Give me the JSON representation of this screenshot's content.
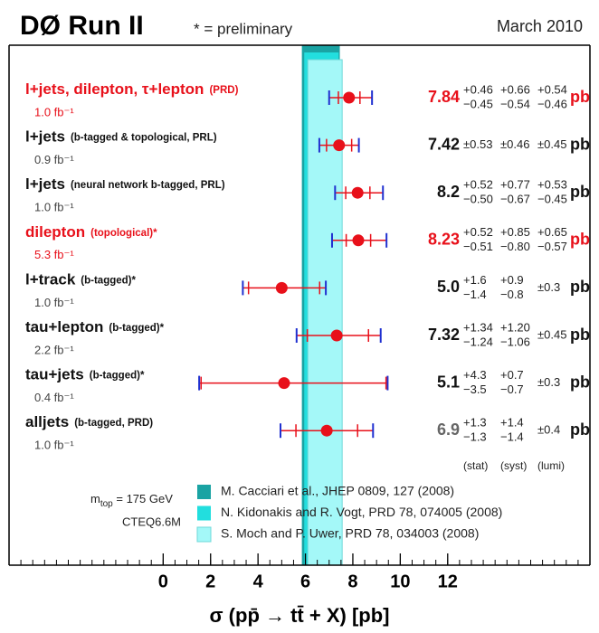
{
  "chart_data": {
    "type": "summary",
    "title": "DØ Run II",
    "subtitle": "* = preliminary",
    "date": "March 2010",
    "unit": "pb",
    "xlabel": "σ (pp̄ → tt̄ + X) [pb]",
    "xlim": [
      -6.5,
      18
    ],
    "xticks": [
      0,
      2,
      4,
      6,
      8,
      10,
      12
    ],
    "xticks_minor": [
      -6,
      -5.5,
      -5,
      -4.5,
      -4,
      -3.5,
      -3,
      -2.5,
      -2,
      -1.5,
      -1,
      -0.5,
      0,
      0.5,
      1,
      1.5,
      2,
      2.5,
      3,
      3.5,
      4,
      4.5,
      5,
      5.5,
      6,
      6.5,
      7,
      7.5,
      8,
      8.5,
      9,
      9.5,
      10,
      10.5,
      11,
      11.5,
      12,
      12.5,
      13,
      13.5,
      14,
      14.5,
      15,
      15.5,
      16,
      16.5,
      17,
      17.5
    ],
    "column_labels": [
      "(stat)",
      "(syst)",
      "(lumi)"
    ],
    "marker_color": "#e8101a",
    "total_color": "#2030d0",
    "measurements": [
      {
        "name": "l+jets, dilepton, τ+lepton",
        "note": "(PRD)",
        "lumi": "1.0 fb⁻¹",
        "color": "#e8101a",
        "value_color": "#e8101a",
        "value": 7.84,
        "stat": [
          {
            "value": 0.46,
            "label": "+0.46"
          },
          {
            "value": 0.45,
            "label": "−0.45"
          }
        ],
        "syst": [
          {
            "value": 0.66,
            "label": "+0.66"
          },
          {
            "value": 0.54,
            "label": "−0.54"
          }
        ],
        "lumi_err": [
          {
            "value": 0.54,
            "label": "+0.54"
          },
          {
            "value": 0.46,
            "label": "−0.46"
          }
        ]
      },
      {
        "name": "l+jets",
        "note": "(b-tagged & topological, PRL)",
        "lumi": "0.9 fb⁻¹",
        "color": "#111111",
        "value_color": "#111111",
        "value": 7.42,
        "stat": [
          {
            "value": 0.53,
            "label": "±0.53"
          }
        ],
        "syst": [
          {
            "value": 0.46,
            "label": "±0.46"
          }
        ],
        "lumi_err": [
          {
            "value": 0.45,
            "label": "±0.45"
          }
        ]
      },
      {
        "name": "l+jets",
        "note": "(neural network b-tagged, PRL)",
        "lumi": "1.0 fb⁻¹",
        "color": "#111111",
        "value_color": "#111111",
        "value": 8.2,
        "stat": [
          {
            "value": 0.52,
            "label": "+0.52"
          },
          {
            "value": 0.5,
            "label": "−0.50"
          }
        ],
        "syst": [
          {
            "value": 0.77,
            "label": "+0.77"
          },
          {
            "value": 0.67,
            "label": "−0.67"
          }
        ],
        "lumi_err": [
          {
            "value": 0.53,
            "label": "+0.53"
          },
          {
            "value": 0.45,
            "label": "−0.45"
          }
        ]
      },
      {
        "name": "dilepton",
        "note": "(topological)*",
        "lumi": "5.3 fb⁻¹",
        "color": "#e8101a",
        "value_color": "#e8101a",
        "value": 8.23,
        "stat": [
          {
            "value": 0.52,
            "label": "+0.52"
          },
          {
            "value": 0.51,
            "label": "−0.51"
          }
        ],
        "syst": [
          {
            "value": 0.85,
            "label": "+0.85"
          },
          {
            "value": 0.8,
            "label": "−0.80"
          }
        ],
        "lumi_err": [
          {
            "value": 0.65,
            "label": "+0.65"
          },
          {
            "value": 0.57,
            "label": "−0.57"
          }
        ]
      },
      {
        "name": "l+track",
        "note": "(b-tagged)*",
        "lumi": "1.0 fb⁻¹",
        "color": "#111111",
        "value_color": "#111111",
        "value": 5.0,
        "value_label": "5.0",
        "stat": [
          {
            "value": 1.6,
            "label": "+1.6"
          },
          {
            "value": 1.4,
            "label": "−1.4"
          }
        ],
        "syst": [
          {
            "value": 0.9,
            "label": "+0.9"
          },
          {
            "value": 0.8,
            "label": "−0.8"
          }
        ],
        "lumi_err": [
          {
            "value": 0.3,
            "label": "±0.3"
          }
        ]
      },
      {
        "name": "tau+lepton",
        "note": "(b-tagged)*",
        "lumi": "2.2 fb⁻¹",
        "color": "#111111",
        "value_color": "#111111",
        "value": 7.32,
        "stat": [
          {
            "value": 1.34,
            "label": "+1.34"
          },
          {
            "value": 1.24,
            "label": "−1.24"
          }
        ],
        "syst": [
          {
            "value": 1.2,
            "label": "+1.20"
          },
          {
            "value": 1.06,
            "label": "−1.06"
          }
        ],
        "lumi_err": [
          {
            "value": 0.45,
            "label": "±0.45"
          }
        ]
      },
      {
        "name": "tau+jets",
        "note": "(b-tagged)*",
        "lumi": "0.4 fb⁻¹",
        "color": "#111111",
        "value_color": "#111111",
        "value": 5.1,
        "stat": [
          {
            "value": 4.3,
            "label": "+4.3"
          },
          {
            "value": 3.5,
            "label": "−3.5"
          }
        ],
        "syst": [
          {
            "value": 0.7,
            "label": "+0.7"
          },
          {
            "value": 0.7,
            "label": "−0.7"
          }
        ],
        "lumi_err": [
          {
            "value": 0.3,
            "label": "±0.3"
          }
        ]
      },
      {
        "name": "alljets",
        "note": "(b-tagged, PRD)",
        "lumi": "1.0 fb⁻¹",
        "color": "#111111",
        "value_color": "#666666",
        "value": 6.9,
        "stat": [
          {
            "value": 1.3,
            "label": "+1.3"
          },
          {
            "value": 1.3,
            "label": "−1.3"
          }
        ],
        "syst": [
          {
            "value": 1.4,
            "label": "+1.4"
          },
          {
            "value": 1.4,
            "label": "−1.4"
          }
        ],
        "lumi_err": [
          {
            "value": 0.4,
            "label": "±0.4"
          }
        ]
      }
    ],
    "bands": [
      {
        "name": "M. Cacciari et al., JHEP 0809, 127 (2008)",
        "color": "#1aa3a3",
        "range": [
          5.85,
          7.45
        ]
      },
      {
        "name": "N. Kidonakis and R. Vogt, PRD 78, 074005 (2008)",
        "color": "#22dede",
        "range": [
          5.95,
          7.4
        ]
      },
      {
        "name": "S. Moch and P. Uwer, PRD 78, 034003 (2008)",
        "color": "#a4f8f8",
        "range": [
          6.1,
          7.55
        ]
      }
    ],
    "mass_symbol": "m",
    "mass_subscript": "top",
    "mass_text": " = 175 GeV",
    "pdf": "CTEQ6.6M"
  }
}
